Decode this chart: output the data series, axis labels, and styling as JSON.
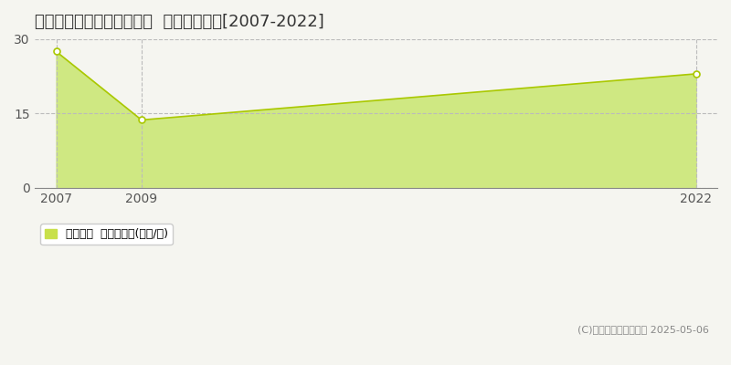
{
  "title": "中新川郡上市町放士ケ瀬新  住宅価格推移[2007-2022]",
  "x_values": [
    2007,
    2009,
    2022
  ],
  "y_values": [
    27.5,
    13.7,
    23.0
  ],
  "fill_color": "#cfe882",
  "line_color": "#aac800",
  "point_color": "#ffffff",
  "point_edge_color": "#aac800",
  "xlim": [
    2007,
    2022
  ],
  "ylim": [
    0,
    30
  ],
  "yticks": [
    0,
    15,
    30
  ],
  "xticks": [
    2007,
    2009,
    2022
  ],
  "grid_color": "#bbbbbb",
  "background_color": "#f5f5f0",
  "plot_bg_color": "#f5f5f0",
  "legend_label": "住宅価格  平均坪単価(万円/坪)",
  "legend_color": "#c8e04a",
  "copyright_text": "(C)土地価格ドットコム 2025-05-06",
  "title_fontsize": 13,
  "axis_fontsize": 10,
  "legend_fontsize": 9,
  "copyright_fontsize": 8
}
